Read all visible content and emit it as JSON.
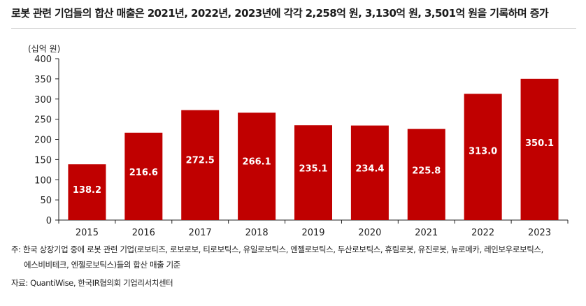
{
  "title": "로봇 관련 기업들의 합산 매출은 2021년, 2022년, 2023년에 각각 2,258억 원, 3,130억 원, 3,501억 원을 기록하며 증가",
  "unit_label": "(십억 원)",
  "notes": {
    "line1": "주: 한국 상장기업 중에 로봇 관련 기업(로보티즈, 로보로보, 티로보틱스, 유일로보틱스, 엔젤로보틱스, 두산로보틱스, 휴림로봇, 유진로봇, 뉴로메카, 레인보우로보틱스,",
    "line2": "에스비비테크, 엔젤로보틱스)들의 합산 매출 기준",
    "source": "자료: QuantiWise, 한국IR협의회 기업리서치센터"
  },
  "colors": {
    "bar": "#c00000",
    "label": "#ffffff",
    "axis": "#222222"
  },
  "chart_data": {
    "type": "bar",
    "categories": [
      "2015",
      "2016",
      "2017",
      "2018",
      "2019",
      "2020",
      "2021",
      "2022",
      "2023"
    ],
    "values": [
      138.2,
      216.6,
      272.5,
      266.1,
      235.1,
      234.4,
      225.8,
      313.0,
      350.1
    ],
    "value_labels": [
      "138.2",
      "216.6",
      "272.5",
      "266.1",
      "235.1",
      "234.4",
      "225.8",
      "313.0",
      "350.1"
    ],
    "yticks": [
      "0",
      "50",
      "100",
      "150",
      "200",
      "250",
      "300",
      "350",
      "400"
    ],
    "ylim": [
      0,
      400
    ],
    "grid": false,
    "legend": "none"
  }
}
